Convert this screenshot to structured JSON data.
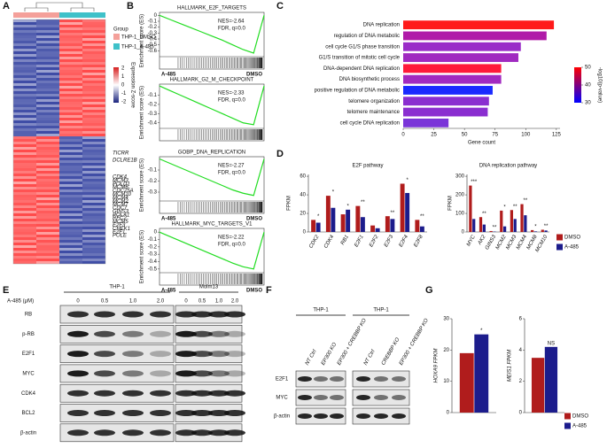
{
  "panel_labels": [
    "A",
    "B",
    "C",
    "D",
    "E",
    "F",
    "G"
  ],
  "heatmap": {
    "group_title": "Group",
    "groups": [
      "THP-1_DMSO",
      "THP-1_A-485"
    ],
    "group_colors": [
      "#f4a09a",
      "#3fc1c9"
    ],
    "zscore_label": "Expression Z-score",
    "zscore_ticks": [
      2,
      1,
      0,
      -1,
      -2
    ],
    "genes": [
      "TICRR",
      "DCLRE1B",
      "CDK4",
      "MCM3",
      "POLD1",
      "MCM6",
      "CDC25A",
      "MCM10",
      "MCM4",
      "MCM2",
      "MCM7",
      "CDC7",
      "GINS3",
      "POLA1",
      "RFC2",
      "MCM5",
      "E2F3",
      "CHEK1",
      "E2F1",
      "POLE"
    ]
  },
  "chart_data": [
    {
      "type": "line",
      "title": "HALLMARK_E2F_TARGETS",
      "nes": "NES=-2.64",
      "fdr": "FDR, q=0.0",
      "y_label": "Enrichment score (ES)",
      "x_labels": [
        "A-485",
        "DMSO"
      ],
      "color": "#22dd22",
      "x": [
        0,
        10,
        20,
        30,
        40,
        50,
        60,
        70,
        80,
        90,
        100
      ],
      "values": [
        0,
        -0.07,
        -0.14,
        -0.21,
        -0.28,
        -0.35,
        -0.42,
        -0.5,
        -0.58,
        -0.64,
        0
      ],
      "xlim": [
        0,
        100
      ],
      "ylim": [
        -0.7,
        0.05
      ],
      "yticks": [
        0,
        -0.1,
        -0.2,
        -0.3,
        -0.4,
        -0.5,
        -0.6
      ]
    },
    {
      "type": "line",
      "title": "HALLMARK_G2_M_CHECKPOINT",
      "nes": "NES=-2.33",
      "fdr": "FDR, q=0.0",
      "y_label": "Enrichment score (ES)",
      "color": "#22dd22",
      "x": [
        0,
        10,
        20,
        30,
        40,
        50,
        60,
        70,
        80,
        90,
        100
      ],
      "values": [
        0,
        -0.05,
        -0.1,
        -0.15,
        -0.2,
        -0.25,
        -0.3,
        -0.35,
        -0.4,
        -0.42,
        0
      ],
      "xlim": [
        0,
        100
      ],
      "ylim": [
        -0.46,
        0.02
      ],
      "yticks": [
        -0.1,
        -0.2,
        -0.3,
        -0.4
      ]
    },
    {
      "type": "line",
      "title": "GOBP_DNA_REPLICATION",
      "nes": "NES=-2.27",
      "fdr": "FDR, q=0.0",
      "y_label": "Enrichment score (ES)",
      "x_labels": [
        "A-485",
        "DMSO"
      ],
      "color": "#22dd22",
      "x": [
        0,
        10,
        20,
        30,
        40,
        50,
        60,
        70,
        80,
        90,
        100
      ],
      "values": [
        0,
        -0.04,
        -0.08,
        -0.12,
        -0.16,
        -0.2,
        -0.24,
        -0.28,
        -0.31,
        -0.33,
        0
      ],
      "xlim": [
        0,
        100
      ],
      "ylim": [
        -0.38,
        0.02
      ],
      "yticks": [
        -0.1,
        -0.2,
        -0.3
      ]
    },
    {
      "type": "line",
      "title": "HALLMARK_MYC_TARGETS_V1",
      "nes": "NES=-2.22",
      "fdr": "FDR, q=0.0",
      "y_label": "Enrichment score (ES)",
      "x_labels": [
        "A-485",
        "DMSO"
      ],
      "color": "#22dd22",
      "x": [
        0,
        10,
        20,
        30,
        40,
        50,
        60,
        70,
        80,
        90,
        100
      ],
      "values": [
        0,
        -0.06,
        -0.12,
        -0.18,
        -0.24,
        -0.3,
        -0.36,
        -0.42,
        -0.47,
        -0.5,
        0
      ],
      "xlim": [
        0,
        100
      ],
      "ylim": [
        -0.55,
        0.05
      ],
      "yticks": [
        0,
        -0.1,
        -0.2,
        -0.3,
        -0.4,
        -0.5
      ]
    },
    {
      "type": "bar",
      "orientation": "horizontal",
      "x_label": "Gene count",
      "categories": [
        "DNA replication",
        "regulation of DNA metabolic",
        "cell cycle G1/S phase transition",
        "G1/S transition of mitotic cell cycle",
        "DNA-dependent DNA replication",
        "DNA biosynthetic process",
        "positive regulation of DNA metabolic",
        "telomere organization",
        "telomere maintenance",
        "cell cycle DNA replication"
      ],
      "values": [
        123,
        117,
        96,
        94,
        80,
        80,
        73,
        70,
        69,
        37
      ],
      "colors": [
        "#ff1a1a",
        "#b01aa8",
        "#9a2cc8",
        "#a02ac0",
        "#ff1a3a",
        "#a22ac0",
        "#1a2aff",
        "#8a2ed0",
        "#8a2ed0",
        "#7a35d8"
      ],
      "xlim": [
        0,
        128
      ],
      "xticks": [
        0,
        25,
        50,
        75,
        100,
        125
      ],
      "colorbar": {
        "label": "-log10(p-value)",
        "lim": [
          30,
          50
        ],
        "ticks": [
          50,
          40,
          30
        ],
        "colors": [
          "#0000ff",
          "#ff0000"
        ]
      }
    },
    {
      "type": "bar",
      "title": "E2F pathway",
      "y_label": "FPKM",
      "categories": [
        "CDK2",
        "CDK4",
        "RB1",
        "E2F1",
        "E2F2",
        "E2F3",
        "E2F4",
        "E2F8"
      ],
      "series": [
        {
          "name": "DMSO",
          "color": "#b01c1c",
          "values": [
            13,
            39,
            19,
            28,
            7,
            17,
            52,
            13
          ]
        },
        {
          "name": "A-485",
          "color": "#1c1c8c",
          "values": [
            10,
            26,
            24,
            16,
            4,
            14,
            42,
            6
          ]
        }
      ],
      "annotations": [
        "*",
        "*",
        "*",
        "**",
        null,
        "**",
        "*",
        "**"
      ],
      "ylim": [
        0,
        62
      ],
      "yticks": [
        0,
        20,
        40,
        60
      ]
    },
    {
      "type": "bar",
      "title": "DNA replication pathway",
      "y_label": "FPKM",
      "categories": [
        "MYC",
        "AK2",
        "GINS3",
        "MCM2",
        "MCM3",
        "MCM4",
        "MCM8",
        "MCM10"
      ],
      "series": [
        {
          "name": "DMSO",
          "color": "#b01c1c",
          "values": [
            250,
            80,
            5,
            115,
            118,
            150,
            10,
            12
          ]
        },
        {
          "name": "A-485",
          "color": "#1c1c8c",
          "values": [
            70,
            40,
            2,
            30,
            70,
            90,
            3,
            8
          ]
        }
      ],
      "annotations": [
        "***",
        "**",
        "**",
        "*",
        "**",
        "**",
        "*",
        "**"
      ],
      "ylim": [
        0,
        310
      ],
      "yticks": [
        0,
        100,
        200,
        300
      ],
      "legend": "right"
    },
    {
      "type": "bar",
      "y_label": "HOXA9 FPKM",
      "categories": [
        null
      ],
      "series": [
        {
          "name": "DMSO",
          "color": "#b01c1c",
          "values": [
            19
          ]
        },
        {
          "name": "A-485",
          "color": "#1c1c8c",
          "values": [
            25
          ]
        }
      ],
      "annotations": [
        "*"
      ],
      "ylim": [
        0,
        30
      ],
      "yticks": [
        0,
        10,
        20,
        30
      ]
    },
    {
      "type": "bar",
      "y_label": "MEIS1 FPKM",
      "categories": [
        null
      ],
      "series": [
        {
          "name": "DMSO",
          "color": "#b01c1c",
          "values": [
            3.5
          ]
        },
        {
          "name": "A-485",
          "color": "#1c1c8c",
          "values": [
            4.2
          ]
        }
      ],
      "annotations": [
        "NS"
      ],
      "ylim": [
        0,
        6
      ],
      "yticks": [
        0,
        2,
        4,
        6
      ],
      "legend": "right"
    }
  ],
  "blot_e": {
    "treatment_label": "A-485 (μM)",
    "cell_lines": [
      "THP-1",
      "Molm13"
    ],
    "doses": [
      "0",
      "0.5",
      "1.0",
      "2.0"
    ],
    "rows": [
      "RB",
      "p-RB",
      "E2F1",
      "MYC",
      "CDK4",
      "BCL2",
      "β-actin"
    ]
  },
  "blot_f": {
    "cell_lines": [
      "THP-1",
      "THP-1"
    ],
    "lanes_left": [
      "NT Ctrl",
      "EP300 KO",
      "EP300 + CREBBP KO"
    ],
    "lanes_right": [
      "NT Ctrl",
      "CREBBP KO",
      "EP300 + CREBBP KO"
    ],
    "rows": [
      "E2F1",
      "MYC",
      "β-actin"
    ]
  }
}
